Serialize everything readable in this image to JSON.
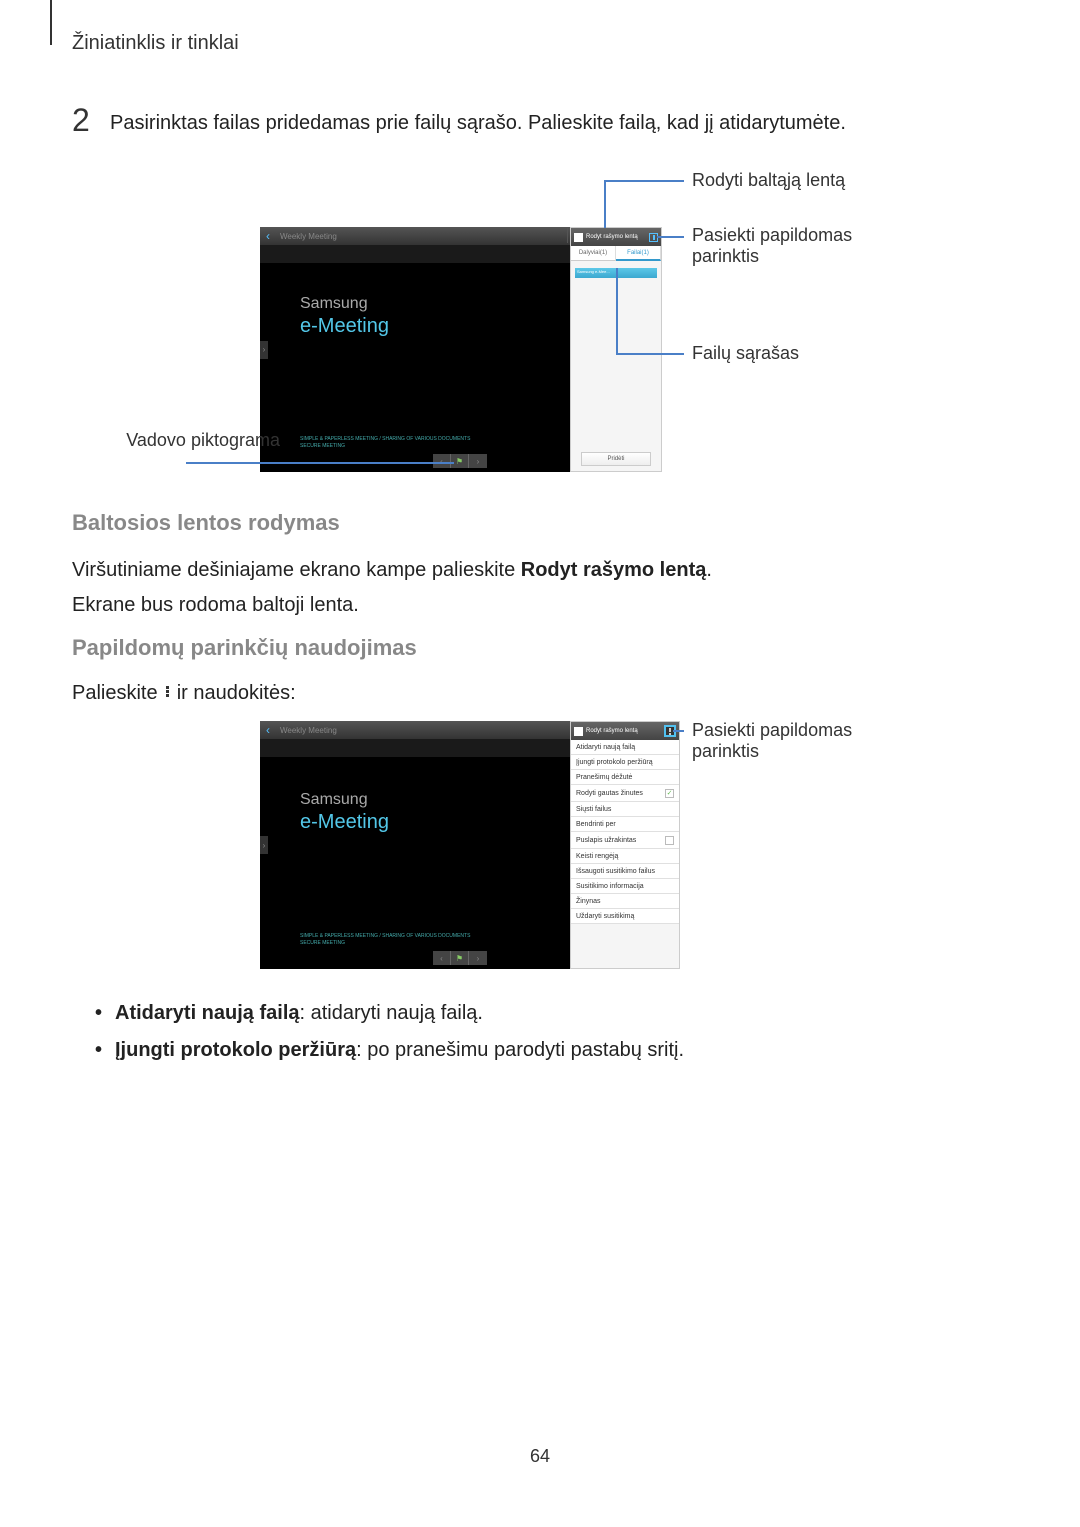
{
  "header": {
    "breadcrumb": "Žiniatinklis ir tinklai"
  },
  "step": {
    "number": "2",
    "text": "Pasirinktas failas pridedamas prie failų sąrašo. Palieskite failą, kad jį atidarytumėte."
  },
  "figure1": {
    "back_glyph": "‹",
    "title": "Weekly Meeting",
    "toolbar_glyphs": [
      "▲",
      "✎",
      "◐",
      "↶",
      "↷",
      "✕"
    ],
    "fullscreen_glyph": "⛶",
    "samsung": "Samsung",
    "emeeting": "e-Meeting",
    "tagline": "SIMPLE & PAPERLESS MEETING / SHARING OF VARIOUS DOCUMENTS\nSECURE MEETING",
    "left_expand": "›",
    "right_expand": "›",
    "bottom_prev": "‹",
    "bottom_mid_glyph": "⚑",
    "bottom_next": "›"
  },
  "sidepanel1": {
    "whiteboard_label": "Rodyt rašymo lentą",
    "tab_participants": "Dalyviai(1)",
    "tab_files": "Failai(1)",
    "file_item": "Samsung e-Mee...",
    "add_button": "Pridėti"
  },
  "callouts1": {
    "whiteboard": "Rodyti baltąją lentą",
    "more_options_1": "Pasiekti papildomas",
    "more_options_2": "parinktis",
    "file_list": "Failų sąrašas",
    "host_icon": "Vadovo piktograma"
  },
  "section_whiteboard": {
    "heading": "Baltosios lentos rodymas",
    "p1a": "Viršutiniame dešiniajame ekrano kampe palieskite ",
    "p1b": "Rodyt rašymo lentą",
    "p1c": ".",
    "p2": "Ekrane bus rodoma baltoji lenta."
  },
  "section_more": {
    "heading": "Papildomų parinkčių naudojimas",
    "p1a": "Palieskite ",
    "p1b": " ir naudokitės:"
  },
  "figure2": {
    "back_glyph": "‹",
    "title": "Weekly Meeting",
    "pencil_glyph": "✎",
    "fullscreen_glyph": "⛶",
    "samsung": "Samsung",
    "emeeting": "e-Meeting",
    "tagline": "SIMPLE & PAPERLESS MEETING / SHARING OF VARIOUS DOCUMENTS\nSECURE MEETING",
    "left_expand": "›",
    "right_expand": "›",
    "bottom_prev": "‹",
    "bottom_mid_glyph": "⚑",
    "bottom_next": "›"
  },
  "sidepanel2": {
    "whiteboard_label": "Rodyt rašymo lentą",
    "menu_items": [
      {
        "label": "Atidaryti naują failą",
        "checkbox": null
      },
      {
        "label": "Įjungti protokolo peržiūrą",
        "checkbox": null
      },
      {
        "label": "Pranešimų dėžutė",
        "checkbox": null
      },
      {
        "label": "Rodyti gautas žinutes",
        "checkbox": "checked"
      },
      {
        "label": "Siųsti failus",
        "checkbox": null
      },
      {
        "label": "Bendrinti per",
        "checkbox": null
      },
      {
        "label": "Puslapis užrakintas",
        "checkbox": "unchecked"
      },
      {
        "label": "Keisti rengėją",
        "checkbox": null
      },
      {
        "label": "Išsaugoti susitikimo failus",
        "checkbox": null
      },
      {
        "label": "Susitikimo informacija",
        "checkbox": null
      },
      {
        "label": "Žinynas",
        "checkbox": null
      },
      {
        "label": "Uždaryti susitikimą",
        "checkbox": null
      }
    ]
  },
  "callouts2": {
    "more_options_1": "Pasiekti papildomas",
    "more_options_2": "parinktis"
  },
  "bullets": {
    "b1_bold": "Atidaryti naują failą",
    "b1_rest": ": atidaryti naują failą.",
    "b2_bold": "Įjungti protokolo peržiūrą",
    "b2_rest": ": po pranešimu parodyti pastabų sritį."
  },
  "page": {
    "number": "64"
  },
  "colors": {
    "callout_line": "#4a7fc7",
    "heading_gray": "#888888",
    "cyan": "#53c7e8",
    "highlight_border": "#51c1f0"
  }
}
